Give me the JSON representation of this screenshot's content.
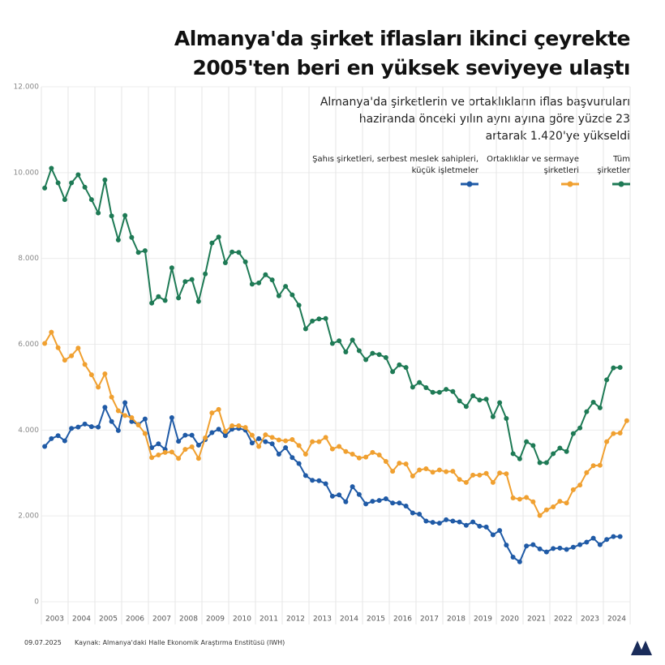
{
  "chart_data": {
    "type": "line",
    "title": "Almanya'da şirket iflasları ikinci çeyrekte\n2005'ten beri en yüksek seviyeye ulaştı",
    "subtitle": "Almanya'da şirketlerin ve ortaklıkların iflas başvuruları\nhaziranda önceki yılın aynı ayına göre yüzde 23\nartarak 1.420'ye yükseldi",
    "date": "09.07.2025",
    "source": "Kaynak: Almanya'daki Halle Ekonomik Araştırma Enstitüsü (IWH)",
    "xlim": [
      2003,
      2025
    ],
    "xticks": [
      {
        "value": 2003.5,
        "label": "2003"
      },
      {
        "value": 2004.5,
        "label": "2004"
      },
      {
        "value": 2005.5,
        "label": "2005"
      },
      {
        "value": 2006.5,
        "label": "2006"
      },
      {
        "value": 2007.5,
        "label": "2007"
      },
      {
        "value": 2008.5,
        "label": "2008"
      },
      {
        "value": 2009.5,
        "label": "2009"
      },
      {
        "value": 2010.5,
        "label": "2010"
      },
      {
        "value": 2011.5,
        "label": "2011"
      },
      {
        "value": 2012.5,
        "label": "2012"
      },
      {
        "value": 2013.5,
        "label": "2013"
      },
      {
        "value": 2014.5,
        "label": "2014"
      },
      {
        "value": 2015.5,
        "label": "2015"
      },
      {
        "value": 2016.5,
        "label": "2016"
      },
      {
        "value": 2017.5,
        "label": "2017"
      },
      {
        "value": 2018.5,
        "label": "2018"
      },
      {
        "value": 2019.5,
        "label": "2019"
      },
      {
        "value": 2020.5,
        "label": "2020"
      },
      {
        "value": 2021.5,
        "label": "2021"
      },
      {
        "value": 2022.5,
        "label": "2022"
      },
      {
        "value": 2023.5,
        "label": "2023"
      },
      {
        "value": 2024.5,
        "label": "2024"
      }
    ],
    "ylim": [
      0,
      12000
    ],
    "yticks": [
      0,
      {
        "value": 2000,
        "label": "2.000"
      },
      {
        "value": 4000,
        "label": "4.000"
      },
      {
        "value": 6000,
        "label": "6.000"
      },
      {
        "value": 8000,
        "label": "8.000"
      },
      {
        "value": 10000,
        "label": "10.000"
      },
      {
        "value": 12000,
        "label": "12.000"
      }
    ],
    "grid": true,
    "x": [
      2003.125,
      2003.375,
      2003.625,
      2003.875,
      2004.125,
      2004.375,
      2004.625,
      2004.875,
      2005.125,
      2005.375,
      2005.625,
      2005.875,
      2006.125,
      2006.375,
      2006.625,
      2006.875,
      2007.125,
      2007.375,
      2007.625,
      2007.875,
      2008.125,
      2008.375,
      2008.625,
      2008.875,
      2009.125,
      2009.375,
      2009.625,
      2009.875,
      2010.125,
      2010.375,
      2010.625,
      2010.875,
      2011.125,
      2011.375,
      2011.625,
      2011.875,
      2012.125,
      2012.375,
      2012.625,
      2012.875,
      2013.125,
      2013.375,
      2013.625,
      2013.875,
      2014.125,
      2014.375,
      2014.625,
      2014.875,
      2015.125,
      2015.375,
      2015.625,
      2015.875,
      2016.125,
      2016.375,
      2016.625,
      2016.875,
      2017.125,
      2017.375,
      2017.625,
      2017.875,
      2018.125,
      2018.375,
      2018.625,
      2018.875,
      2019.125,
      2019.375,
      2019.625,
      2019.875,
      2020.125,
      2020.375,
      2020.625,
      2020.875,
      2021.125,
      2021.375,
      2021.625,
      2021.875,
      2022.125,
      2022.375,
      2022.625,
      2022.875,
      2023.125,
      2023.375,
      2023.625,
      2023.875,
      2024.125,
      2024.375,
      2024.625,
      2024.875
    ],
    "series": [
      {
        "name": "Şahıs şirketleri, serbest meslek sahipleri,\nküçük işletmeler",
        "color": "#1f5aa6",
        "values": [
          3620,
          3800,
          3870,
          3750,
          4040,
          4070,
          4140,
          4080,
          4070,
          4530,
          4200,
          3990,
          4640,
          4200,
          4130,
          4260,
          3590,
          3680,
          3550,
          4290,
          3740,
          3880,
          3880,
          3650,
          3780,
          3940,
          4020,
          3870,
          4020,
          4040,
          4000,
          3700,
          3800,
          3730,
          3680,
          3440,
          3590,
          3360,
          3220,
          2940,
          2830,
          2820,
          2750,
          2460,
          2490,
          2330,
          2680,
          2500,
          2280,
          2340,
          2360,
          2400,
          2300,
          2300,
          2230,
          2070,
          2040,
          1880,
          1850,
          1830,
          1910,
          1880,
          1860,
          1780,
          1860,
          1760,
          1740,
          1560,
          1660,
          1320,
          1040,
          930,
          1300,
          1330,
          1230,
          1160,
          1240,
          1250,
          1220,
          1270,
          1330,
          1390,
          1480,
          1330,
          1450,
          1520,
          1520,
          null
        ]
      },
      {
        "name": "Ortaklıklar ve sermaye\nşirketleri",
        "color": "#f0a030",
        "values": [
          6020,
          6280,
          5920,
          5630,
          5730,
          5910,
          5530,
          5290,
          5000,
          5310,
          4770,
          4450,
          4340,
          4290,
          4120,
          3920,
          3360,
          3420,
          3480,
          3490,
          3340,
          3550,
          3610,
          3340,
          3820,
          4400,
          4480,
          3970,
          4100,
          4100,
          4060,
          3880,
          3620,
          3890,
          3830,
          3770,
          3750,
          3780,
          3640,
          3440,
          3730,
          3730,
          3830,
          3560,
          3620,
          3500,
          3440,
          3350,
          3370,
          3480,
          3420,
          3270,
          3040,
          3230,
          3210,
          2930,
          3070,
          3100,
          3020,
          3070,
          3030,
          3040,
          2850,
          2780,
          2950,
          2950,
          2990,
          2780,
          3000,
          2980,
          2420,
          2390,
          2430,
          2330,
          2010,
          2140,
          2210,
          2340,
          2300,
          2610,
          2720,
          3010,
          3170,
          3180,
          3730,
          3920,
          3930,
          4220
        ]
      },
      {
        "name": "Tüm\nşirketler",
        "color": "#1e7a55",
        "values": [
          9640,
          10100,
          9760,
          9370,
          9760,
          9950,
          9660,
          9370,
          9060,
          9830,
          8990,
          8430,
          9000,
          8490,
          8140,
          8180,
          6960,
          7110,
          7020,
          7780,
          7080,
          7460,
          7510,
          7000,
          7640,
          8360,
          8500,
          7900,
          8150,
          8140,
          7920,
          7400,
          7430,
          7620,
          7500,
          7130,
          7350,
          7150,
          6910,
          6360,
          6540,
          6590,
          6600,
          6020,
          6080,
          5820,
          6100,
          5850,
          5640,
          5790,
          5760,
          5690,
          5360,
          5520,
          5460,
          5000,
          5110,
          4990,
          4880,
          4880,
          4950,
          4900,
          4680,
          4550,
          4800,
          4700,
          4720,
          4310,
          4640,
          4270,
          3450,
          3330,
          3730,
          3640,
          3240,
          3240,
          3450,
          3580,
          3500,
          3920,
          4050,
          4430,
          4650,
          4520,
          5170,
          5450,
          5460,
          null
        ]
      }
    ]
  }
}
